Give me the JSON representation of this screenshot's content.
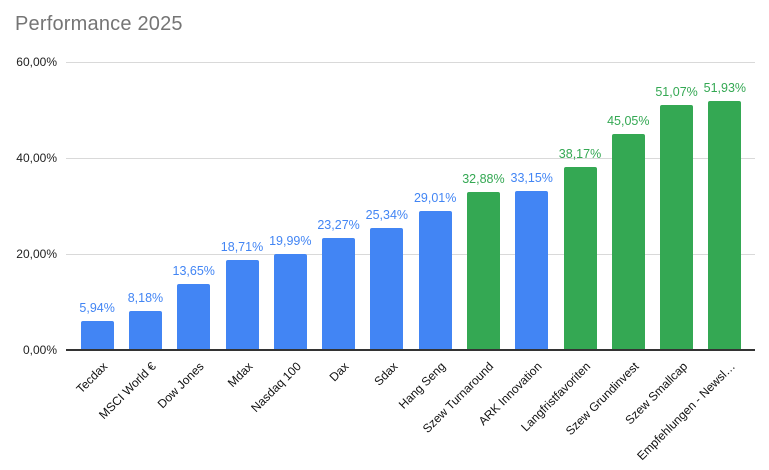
{
  "header": {
    "title": "Performance 2025"
  },
  "colors": {
    "blue_series": "#4285f4",
    "green_series": "#34a853",
    "title_text": "#757575",
    "axis_text": "#222222",
    "gridline": "#d9d9d9",
    "baseline": "#333333",
    "background": "#ffffff"
  },
  "chart_data": {
    "type": "bar",
    "title": "Performance 2025",
    "xlabel": "",
    "ylabel": "",
    "grid": true,
    "legend": "none",
    "ylim": [
      0,
      60
    ],
    "y_ticks": [
      {
        "value": 0,
        "label": "0,00%"
      },
      {
        "value": 20,
        "label": "20,00%"
      },
      {
        "value": 40,
        "label": "40,00%"
      },
      {
        "value": 60,
        "label": "60,00%"
      }
    ],
    "categories": [
      "Tecdax",
      "MSCI World €",
      "Dow Jones",
      "Mdax",
      "Nasdaq 100",
      "Dax",
      "Sdax",
      "Hang Seng",
      "Szew Turnaround",
      "ARK Innovation",
      "Langfristfavoriten",
      "Szew Grundinvest",
      "Szew Smallcap",
      "Empfehlungen - Newsl…"
    ],
    "values": [
      5.94,
      8.18,
      13.65,
      18.71,
      19.99,
      23.27,
      25.34,
      29.01,
      32.88,
      33.15,
      38.17,
      45.05,
      51.07,
      51.93
    ],
    "value_labels": [
      "5,94%",
      "8,18%",
      "13,65%",
      "18,71%",
      "19,99%",
      "23,27%",
      "25,34%",
      "29,01%",
      "32,88%",
      "33,15%",
      "38,17%",
      "45,05%",
      "51,07%",
      "51,93%"
    ],
    "bar_colors": [
      "#4285f4",
      "#4285f4",
      "#4285f4",
      "#4285f4",
      "#4285f4",
      "#4285f4",
      "#4285f4",
      "#4285f4",
      "#34a853",
      "#4285f4",
      "#34a853",
      "#34a853",
      "#34a853",
      "#34a853"
    ]
  }
}
